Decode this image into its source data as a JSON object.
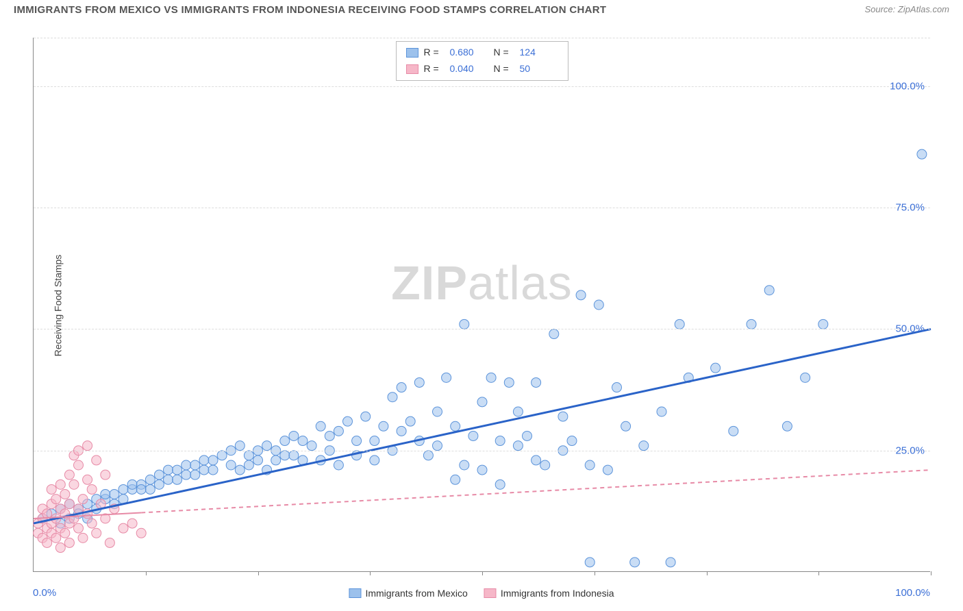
{
  "title": "IMMIGRANTS FROM MEXICO VS IMMIGRANTS FROM INDONESIA RECEIVING FOOD STAMPS CORRELATION CHART",
  "source": "Source: ZipAtlas.com",
  "ylabel": "Receiving Food Stamps",
  "watermark_a": "ZIP",
  "watermark_b": "atlas",
  "legend_top": {
    "r_label": "R =",
    "n_label": "N =",
    "rows": [
      {
        "swatch_fill": "#9cc1ec",
        "swatch_border": "#5b93da",
        "r": "0.680",
        "n": "124"
      },
      {
        "swatch_fill": "#f6b7c8",
        "swatch_border": "#e78aa6",
        "r": "0.040",
        "n": "50"
      }
    ]
  },
  "legend_bottom": {
    "items": [
      {
        "swatch_fill": "#9cc1ec",
        "swatch_border": "#5b93da",
        "label": "Immigrants from Mexico"
      },
      {
        "swatch_fill": "#f6b7c8",
        "swatch_border": "#e78aa6",
        "label": "Immigrants from Indonesia"
      }
    ]
  },
  "chart": {
    "type": "scatter",
    "xlim": [
      0,
      100
    ],
    "ylim": [
      0,
      110
    ],
    "y_ticks": [
      25,
      50,
      75,
      100
    ],
    "y_tick_labels": [
      "25.0%",
      "50.0%",
      "75.0%",
      "100.0%"
    ],
    "x_ticks": [
      12.5,
      25,
      37.5,
      50,
      62.5,
      75,
      87.5,
      100
    ],
    "x_min_label": "0.0%",
    "x_max_label": "100.0%",
    "grid_color": "#dddddd",
    "background": "#ffffff",
    "marker_radius": 7,
    "marker_opacity": 0.55,
    "series": [
      {
        "name": "mexico",
        "color_fill": "#9cc1ec",
        "color_stroke": "#5b93da",
        "trend": {
          "x1": 0,
          "y1": 10,
          "x2": 100,
          "y2": 50,
          "stroke": "#2a63c8",
          "width": 3,
          "dash": "none",
          "solid_until_x": 100
        },
        "points": [
          [
            1,
            11
          ],
          [
            2,
            12
          ],
          [
            3,
            13
          ],
          [
            3,
            10
          ],
          [
            4,
            11
          ],
          [
            4,
            14
          ],
          [
            5,
            13
          ],
          [
            5,
            12
          ],
          [
            6,
            14
          ],
          [
            6,
            11
          ],
          [
            7,
            15
          ],
          [
            7,
            13
          ],
          [
            8,
            15
          ],
          [
            8,
            16
          ],
          [
            9,
            14
          ],
          [
            9,
            16
          ],
          [
            10,
            17
          ],
          [
            10,
            15
          ],
          [
            11,
            17
          ],
          [
            11,
            18
          ],
          [
            12,
            18
          ],
          [
            12,
            17
          ],
          [
            13,
            19
          ],
          [
            13,
            17
          ],
          [
            14,
            20
          ],
          [
            14,
            18
          ],
          [
            15,
            19
          ],
          [
            15,
            21
          ],
          [
            16,
            21
          ],
          [
            16,
            19
          ],
          [
            17,
            20
          ],
          [
            17,
            22
          ],
          [
            18,
            22
          ],
          [
            18,
            20
          ],
          [
            19,
            23
          ],
          [
            19,
            21
          ],
          [
            20,
            21
          ],
          [
            20,
            23
          ],
          [
            21,
            24
          ],
          [
            22,
            22
          ],
          [
            22,
            25
          ],
          [
            23,
            21
          ],
          [
            23,
            26
          ],
          [
            24,
            24
          ],
          [
            24,
            22
          ],
          [
            25,
            25
          ],
          [
            25,
            23
          ],
          [
            26,
            26
          ],
          [
            26,
            21
          ],
          [
            27,
            23
          ],
          [
            27,
            25
          ],
          [
            28,
            24
          ],
          [
            28,
            27
          ],
          [
            29,
            28
          ],
          [
            29,
            24
          ],
          [
            30,
            23
          ],
          [
            30,
            27
          ],
          [
            31,
            26
          ],
          [
            32,
            30
          ],
          [
            32,
            23
          ],
          [
            33,
            25
          ],
          [
            33,
            28
          ],
          [
            34,
            29
          ],
          [
            34,
            22
          ],
          [
            35,
            31
          ],
          [
            36,
            27
          ],
          [
            36,
            24
          ],
          [
            37,
            32
          ],
          [
            38,
            27
          ],
          [
            38,
            23
          ],
          [
            39,
            30
          ],
          [
            40,
            36
          ],
          [
            40,
            25
          ],
          [
            41,
            29
          ],
          [
            41,
            38
          ],
          [
            42,
            31
          ],
          [
            43,
            27
          ],
          [
            43,
            39
          ],
          [
            44,
            24
          ],
          [
            45,
            33
          ],
          [
            45,
            26
          ],
          [
            46,
            40
          ],
          [
            47,
            30
          ],
          [
            47,
            19
          ],
          [
            48,
            22
          ],
          [
            48,
            51
          ],
          [
            49,
            28
          ],
          [
            50,
            35
          ],
          [
            50,
            21
          ],
          [
            51,
            40
          ],
          [
            52,
            27
          ],
          [
            52,
            18
          ],
          [
            53,
            39
          ],
          [
            54,
            33
          ],
          [
            55,
            28
          ],
          [
            56,
            39
          ],
          [
            57,
            22
          ],
          [
            58,
            49
          ],
          [
            59,
            32
          ],
          [
            60,
            27
          ],
          [
            61,
            57
          ],
          [
            62,
            2
          ],
          [
            63,
            55
          ],
          [
            64,
            21
          ],
          [
            65,
            38
          ],
          [
            66,
            30
          ],
          [
            67,
            2
          ],
          [
            68,
            26
          ],
          [
            70,
            33
          ],
          [
            71,
            2
          ],
          [
            72,
            51
          ],
          [
            73,
            40
          ],
          [
            76,
            42
          ],
          [
            78,
            29
          ],
          [
            80,
            51
          ],
          [
            82,
            58
          ],
          [
            84,
            30
          ],
          [
            86,
            40
          ],
          [
            88,
            51
          ],
          [
            99,
            86
          ],
          [
            54,
            26
          ],
          [
            56,
            23
          ],
          [
            59,
            25
          ],
          [
            62,
            22
          ]
        ]
      },
      {
        "name": "indonesia",
        "color_fill": "#f6b7c8",
        "color_stroke": "#e78aa6",
        "trend": {
          "x1": 0,
          "y1": 11,
          "x2": 100,
          "y2": 21,
          "stroke": "#e78aa6",
          "width": 2,
          "dash": "6,5",
          "solid_until_x": 12
        },
        "points": [
          [
            0.5,
            8
          ],
          [
            0.5,
            10
          ],
          [
            1,
            11
          ],
          [
            1,
            7
          ],
          [
            1,
            13
          ],
          [
            1.5,
            9
          ],
          [
            1.5,
            12
          ],
          [
            1.5,
            6
          ],
          [
            2,
            14
          ],
          [
            2,
            10
          ],
          [
            2,
            8
          ],
          [
            2,
            17
          ],
          [
            2.5,
            11
          ],
          [
            2.5,
            15
          ],
          [
            2.5,
            7
          ],
          [
            3,
            13
          ],
          [
            3,
            9
          ],
          [
            3,
            18
          ],
          [
            3,
            5
          ],
          [
            3.5,
            12
          ],
          [
            3.5,
            16
          ],
          [
            3.5,
            8
          ],
          [
            4,
            14
          ],
          [
            4,
            10
          ],
          [
            4,
            20
          ],
          [
            4,
            6
          ],
          [
            4.5,
            11
          ],
          [
            4.5,
            18
          ],
          [
            4.5,
            24
          ],
          [
            5,
            13
          ],
          [
            5,
            9
          ],
          [
            5,
            22
          ],
          [
            5,
            25
          ],
          [
            5.5,
            15
          ],
          [
            5.5,
            7
          ],
          [
            6,
            12
          ],
          [
            6,
            19
          ],
          [
            6,
            26
          ],
          [
            6.5,
            10
          ],
          [
            6.5,
            17
          ],
          [
            7,
            23
          ],
          [
            7,
            8
          ],
          [
            7.5,
            14
          ],
          [
            8,
            11
          ],
          [
            8,
            20
          ],
          [
            8.5,
            6
          ],
          [
            9,
            13
          ],
          [
            10,
            9
          ],
          [
            11,
            10
          ],
          [
            12,
            8
          ]
        ]
      }
    ]
  }
}
